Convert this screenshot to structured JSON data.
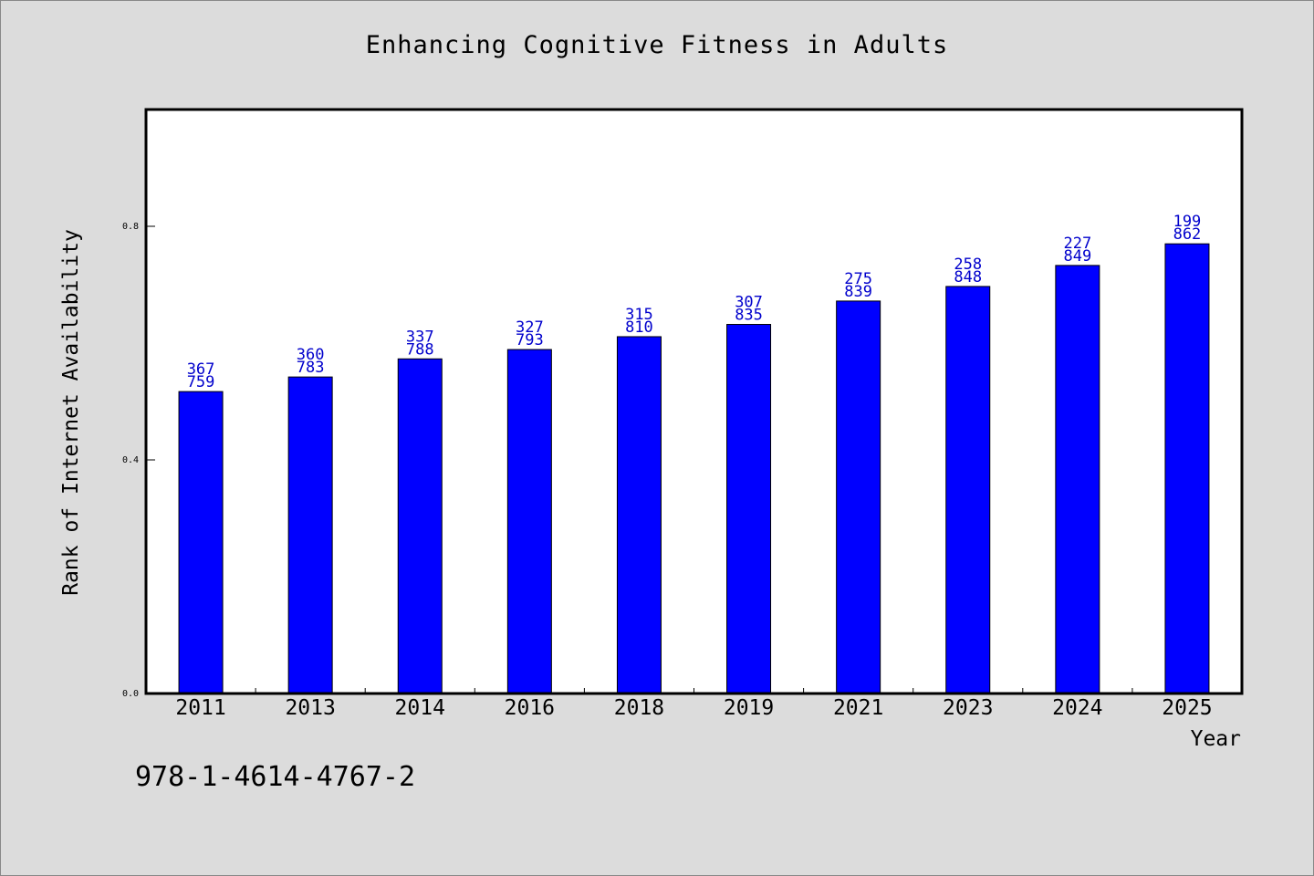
{
  "chart_data": {
    "type": "bar",
    "title": "Enhancing Cognitive Fitness in Adults",
    "xlabel": "Year",
    "ylabel": "Rank of Internet Availability",
    "ylim": [
      0,
      1.0
    ],
    "yticks": [
      "0.0",
      "0.4",
      "0.8"
    ],
    "ytick_values": [
      0.0,
      0.4,
      0.8
    ],
    "categories": [
      "2011",
      "2013",
      "2014",
      "2016",
      "2018",
      "2019",
      "2021",
      "2023",
      "2024",
      "2025"
    ],
    "values": [
      0.517,
      0.542,
      0.573,
      0.589,
      0.611,
      0.632,
      0.672,
      0.697,
      0.733,
      0.77
    ],
    "data_labels": [
      [
        "367",
        "759"
      ],
      [
        "360",
        "783"
      ],
      [
        "337",
        "788"
      ],
      [
        "327",
        "793"
      ],
      [
        "315",
        "810"
      ],
      [
        "307",
        "835"
      ],
      [
        "275",
        "839"
      ],
      [
        "258",
        "848"
      ],
      [
        "227",
        "849"
      ],
      [
        "199",
        "862"
      ]
    ],
    "bar_color": "#0000ff",
    "label_color": "#0000cc",
    "grid": false,
    "legend": "none"
  },
  "footer": {
    "identifier": "978-1-4614-4767-2"
  }
}
